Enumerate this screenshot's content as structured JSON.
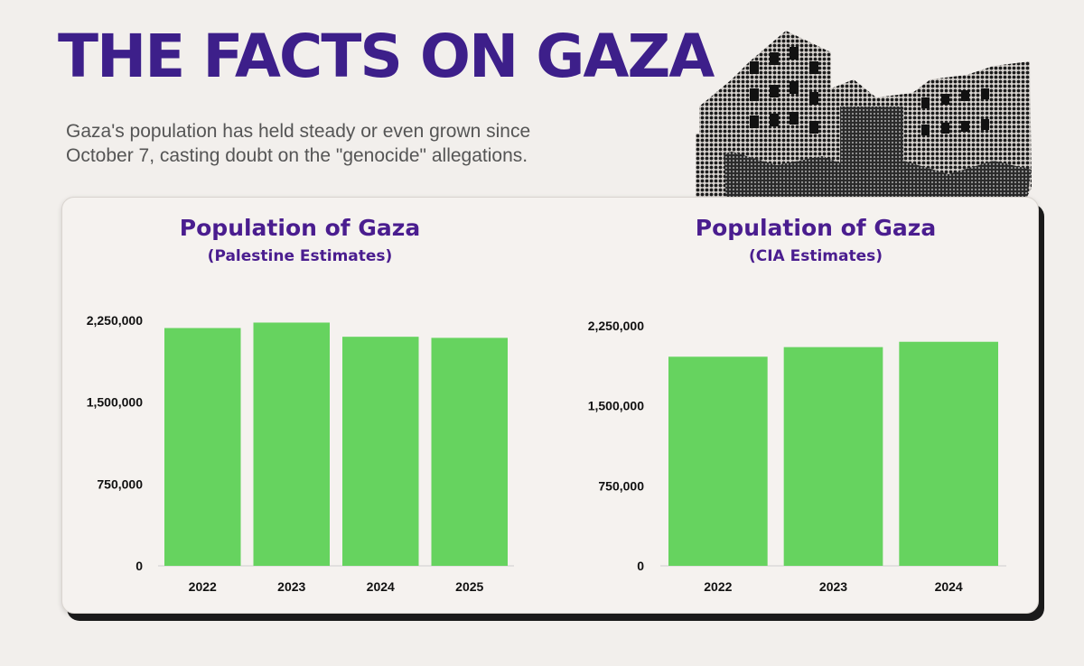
{
  "header": {
    "title": "THE FACTS ON GAZA",
    "subtitle": "Gaza's population has held steady or even grown since October 7, casting doubt on the \"genocide\" allegations."
  },
  "colors": {
    "headline": "#3d1f8a",
    "chart_title": "#4a1d8f",
    "bar": "#66d35f",
    "background": "#f2efec"
  },
  "photo": {
    "description_icon": "building-rubble-icon"
  },
  "chart_data": [
    {
      "type": "bar",
      "title": "Population of Gaza",
      "subtitle": "(Palestine Estimates)",
      "categories": [
        "2022",
        "2023",
        "2024",
        "2025"
      ],
      "values": [
        2180000,
        2230000,
        2100000,
        2090000
      ],
      "ylim": [
        0,
        2300000
      ],
      "yticks": [
        0,
        750000,
        1500000,
        2250000
      ],
      "ytick_labels": [
        "0",
        "750,000",
        "1,500,000",
        "2,250,000"
      ],
      "xlabel": "",
      "ylabel": "",
      "grid": false
    },
    {
      "type": "bar",
      "title": "Population of Gaza",
      "subtitle": "(CIA Estimates)",
      "categories": [
        "2022",
        "2023",
        "2024"
      ],
      "values": [
        1960000,
        2050000,
        2100000
      ],
      "ylim": [
        0,
        2250000
      ],
      "yticks": [
        0,
        750000,
        1500000,
        2250000
      ],
      "ytick_labels": [
        "0",
        "750,000",
        "1,500,000",
        "2,250,000"
      ],
      "xlabel": "",
      "ylabel": "",
      "grid": false
    }
  ]
}
